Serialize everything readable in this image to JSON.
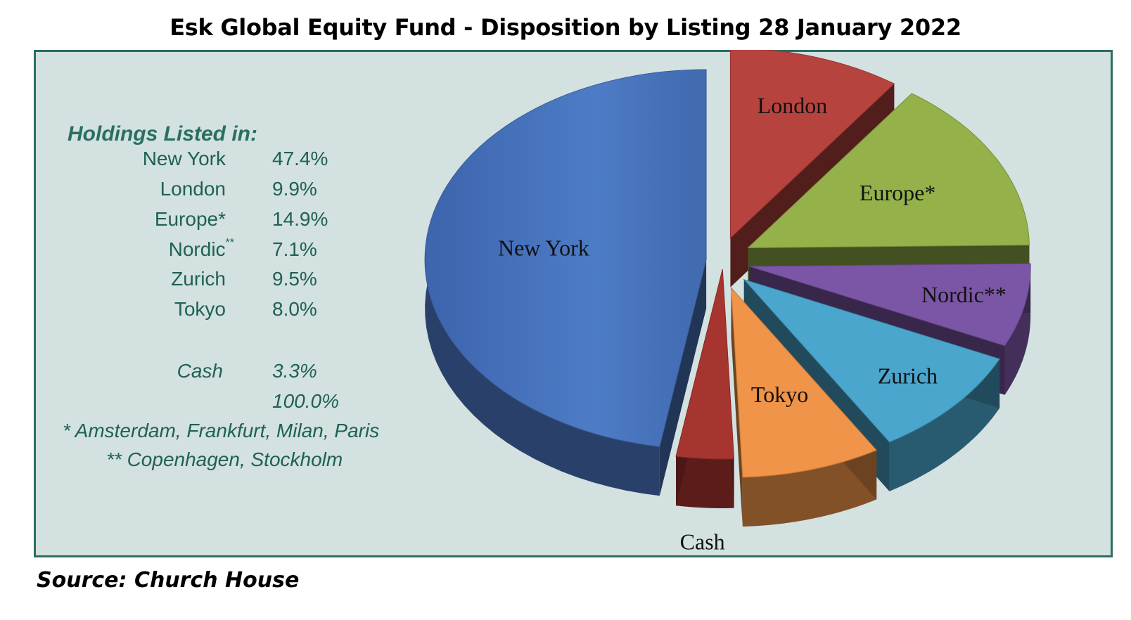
{
  "title": "Esk Global Equity Fund - Disposition by Listing 28 January 2022",
  "source": "Source: Church House",
  "holdings_title": "Holdings Listed in:",
  "rows": [
    {
      "name": "New York",
      "pct": "47.4%"
    },
    {
      "name": "London",
      "pct": "9.9%"
    },
    {
      "name": "Europe*",
      "pct": "14.9%"
    },
    {
      "name": "Nordic",
      "sup": "**",
      "pct": "7.1%"
    },
    {
      "name": "Zurich",
      "pct": "9.5%"
    },
    {
      "name": "Tokyo",
      "pct": "8.0%"
    }
  ],
  "cash": {
    "name": "Cash",
    "pct": "3.3%"
  },
  "total": "100.0%",
  "notes": [
    "* Amsterdam, Frankfurt, Milan, Paris",
    "** Copenhagen, Stockholm"
  ],
  "chart_data": {
    "type": "pie",
    "title": "Esk Global Equity Fund - Disposition by Listing 28 January 2022",
    "categories": [
      "New York",
      "London",
      "Europe*",
      "Nordic**",
      "Zurich",
      "Tokyo",
      "Cash"
    ],
    "values": [
      47.4,
      9.9,
      14.9,
      7.1,
      9.5,
      8.0,
      3.3
    ],
    "units": "%",
    "style": "3d exploded pie",
    "colors": {
      "New York": "#4a76c0",
      "London": "#b7433e",
      "Europe*": "#95b24a",
      "Nordic**": "#7c56a6",
      "Zurich": "#4aa6cc",
      "Tokyo": "#ef9448",
      "Cash": "#a7352f"
    },
    "panel_background": "#d3e1e0",
    "panel_border": "#2d6e61",
    "legend_text_color": "#1f6155"
  }
}
